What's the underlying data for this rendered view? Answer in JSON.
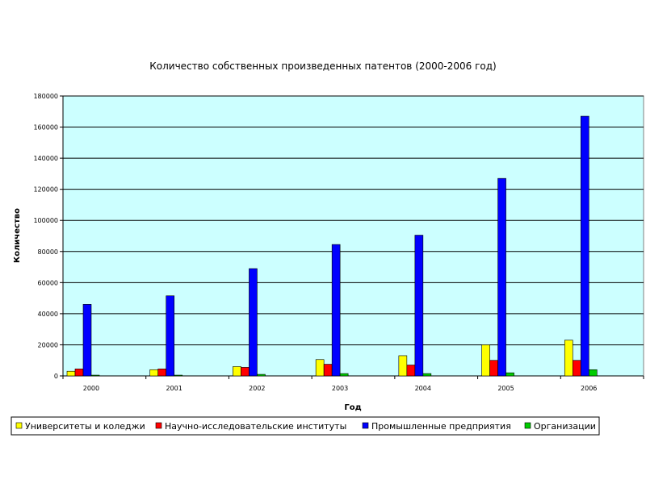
{
  "chart_data": {
    "type": "bar",
    "title": "Количество собственных произведенных патентов (2000-2006 год)",
    "xlabel": "Год",
    "ylabel": "Количество",
    "categories": [
      "2000",
      "2001",
      "2002",
      "2003",
      "2004",
      "2005",
      "2006"
    ],
    "ylim": [
      0,
      180000
    ],
    "yticks": [
      0,
      20000,
      40000,
      60000,
      80000,
      100000,
      120000,
      140000,
      160000,
      180000
    ],
    "grid": true,
    "legend_position": "bottom",
    "plot_background": "#ccffff",
    "series": [
      {
        "name": "Университеты и коледжи",
        "color": "#ffff00",
        "values": [
          3000,
          4000,
          6000,
          10500,
          13000,
          20000,
          23000
        ]
      },
      {
        "name": "Научно-исследовательские институты",
        "color": "#ff0000",
        "values": [
          4500,
          4500,
          5500,
          7500,
          7000,
          10000,
          10000
        ]
      },
      {
        "name": "Промышленные предприятия",
        "color": "#0000ff",
        "values": [
          46000,
          51500,
          69000,
          84500,
          90500,
          127000,
          167000
        ]
      },
      {
        "name": "Организации",
        "color": "#00cc00",
        "values": [
          500,
          500,
          1000,
          1500,
          1500,
          2000,
          4000
        ]
      }
    ]
  }
}
